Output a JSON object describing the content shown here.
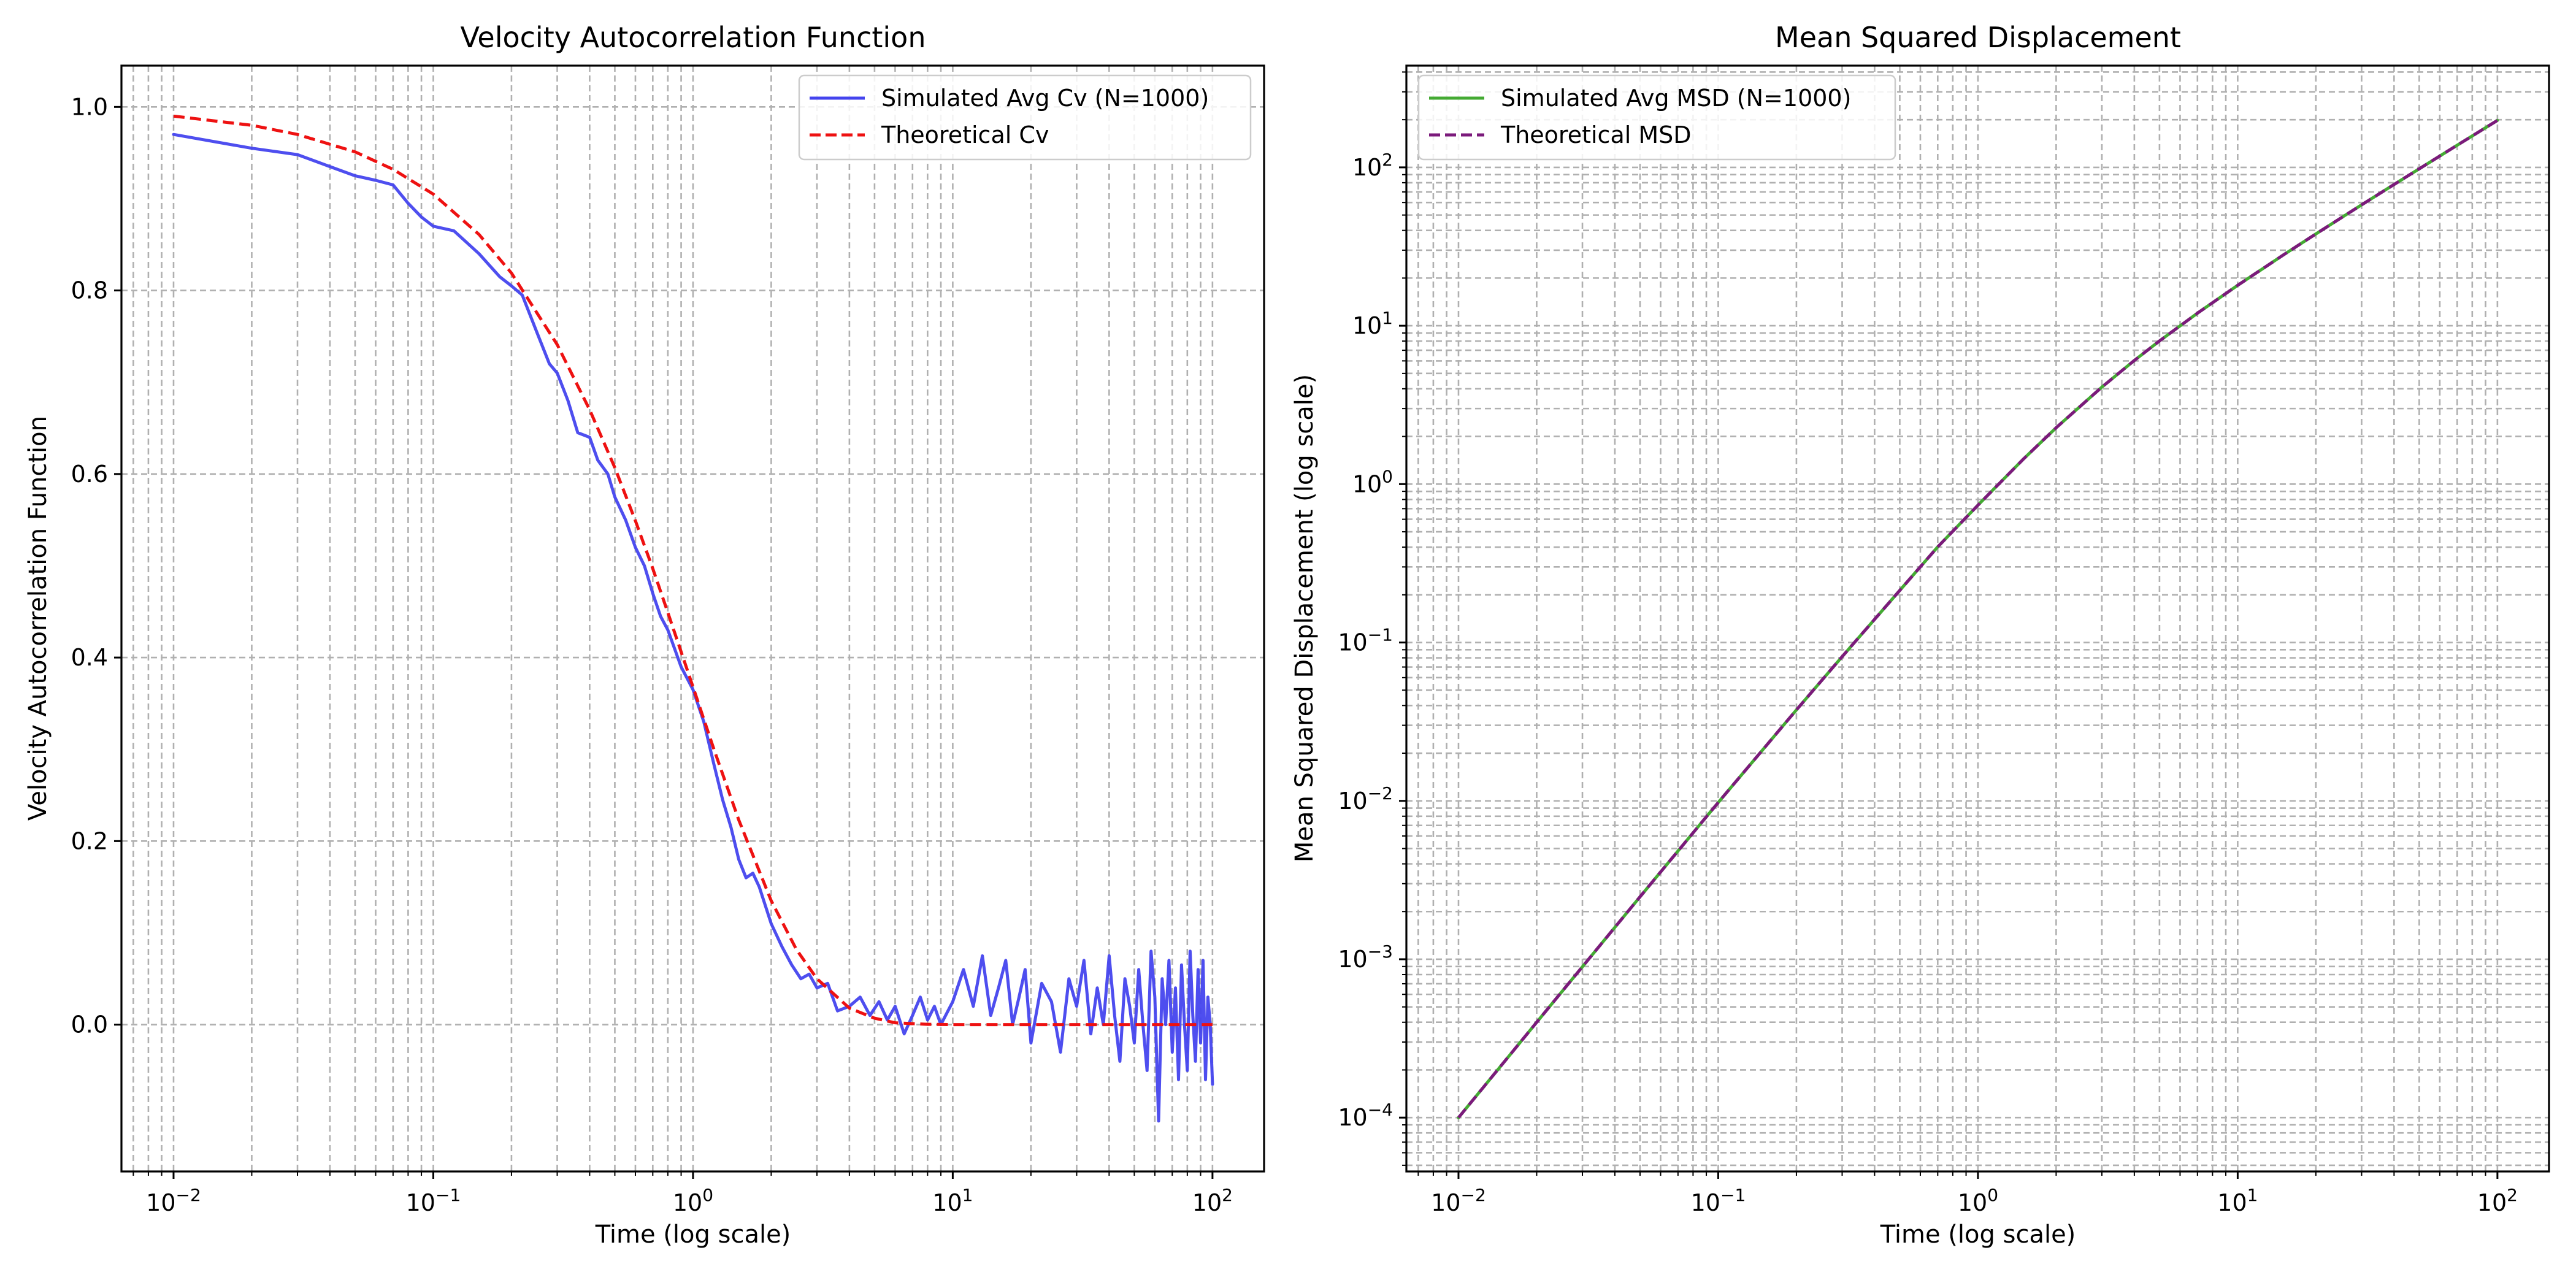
{
  "chart_data": [
    {
      "type": "line",
      "title": "Velocity Autocorrelation Function",
      "xlabel": "Time (log scale)",
      "ylabel": "Velocity Autocorrelation Function",
      "xscale": "log",
      "xlim": [
        0.0063,
        158
      ],
      "ylim": [
        -0.16,
        1.045
      ],
      "x_ticks": [
        0.01,
        0.1,
        1,
        10,
        100
      ],
      "x_tick_labels": [
        "10^-2",
        "10^-1",
        "10^0",
        "10^1",
        "10^2"
      ],
      "y_ticks": [
        0.0,
        0.2,
        0.4,
        0.6,
        0.8,
        1.0
      ],
      "y_tick_labels": [
        "0.0",
        "0.2",
        "0.4",
        "0.6",
        "0.8",
        "1.0"
      ],
      "grid": true,
      "legend_position": "top-right",
      "series": [
        {
          "name": "Simulated Avg Cv (N=1000)",
          "color": "#4444ee",
          "style": "solid",
          "x": [
            0.01,
            0.02,
            0.03,
            0.04,
            0.05,
            0.06,
            0.07,
            0.08,
            0.09,
            0.1,
            0.12,
            0.15,
            0.18,
            0.2,
            0.22,
            0.25,
            0.28,
            0.3,
            0.33,
            0.36,
            0.4,
            0.43,
            0.47,
            0.5,
            0.55,
            0.6,
            0.65,
            0.7,
            0.75,
            0.8,
            0.9,
            1.0,
            1.1,
            1.2,
            1.3,
            1.4,
            1.5,
            1.6,
            1.7,
            1.8,
            2.0,
            2.2,
            2.4,
            2.6,
            2.8,
            3.0,
            3.3,
            3.6,
            4.0,
            4.4,
            4.8,
            5.2,
            5.6,
            6.0,
            6.5,
            7.0,
            7.5,
            8.0,
            8.5,
            9.0,
            10.0,
            11.0,
            12.0,
            13.0,
            14.0,
            15.0,
            16.0,
            17.0,
            18.0,
            19.0,
            20.0,
            22.0,
            24.0,
            26.0,
            28.0,
            30.0,
            32.0,
            34.0,
            36.0,
            38.0,
            40.0,
            42.0,
            44.0,
            46.0,
            48.0,
            50.0,
            52.0,
            54.0,
            56.0,
            58.0,
            60.0,
            62.0,
            64.0,
            66.0,
            68.0,
            70.0,
            72.0,
            74.0,
            76.0,
            78.0,
            80.0,
            82.0,
            84.0,
            86.0,
            88.0,
            90.0,
            92.0,
            94.0,
            96.0,
            98.0,
            100.0
          ],
          "y": [
            0.97,
            0.955,
            0.948,
            0.935,
            0.925,
            0.92,
            0.915,
            0.895,
            0.88,
            0.87,
            0.865,
            0.84,
            0.815,
            0.805,
            0.795,
            0.755,
            0.72,
            0.71,
            0.68,
            0.645,
            0.64,
            0.615,
            0.6,
            0.575,
            0.55,
            0.52,
            0.5,
            0.47,
            0.445,
            0.43,
            0.39,
            0.365,
            0.33,
            0.285,
            0.245,
            0.215,
            0.18,
            0.16,
            0.165,
            0.15,
            0.11,
            0.085,
            0.065,
            0.05,
            0.055,
            0.04,
            0.045,
            0.015,
            0.02,
            0.03,
            0.01,
            0.025,
            0.005,
            0.02,
            -0.01,
            0.01,
            0.03,
            0.005,
            0.02,
            0.0,
            0.025,
            0.06,
            0.02,
            0.075,
            0.01,
            0.04,
            0.07,
            0.0,
            0.03,
            0.06,
            -0.02,
            0.045,
            0.025,
            -0.03,
            0.05,
            0.02,
            0.07,
            -0.01,
            0.04,
            0.0,
            0.075,
            0.01,
            -0.04,
            0.05,
            0.02,
            -0.02,
            0.06,
            0.0,
            -0.05,
            0.08,
            0.03,
            -0.105,
            0.05,
            0.0,
            0.07,
            -0.03,
            0.04,
            -0.06,
            0.065,
            0.0,
            -0.05,
            0.08,
            0.01,
            -0.04,
            0.06,
            -0.02,
            0.07,
            -0.06,
            0.03,
            0.0,
            -0.065
          ]
        },
        {
          "name": "Theoretical Cv",
          "color": "#ee1111",
          "style": "dashed",
          "x": [
            0.01,
            0.02,
            0.03,
            0.05,
            0.07,
            0.1,
            0.15,
            0.2,
            0.3,
            0.4,
            0.5,
            0.6,
            0.7,
            0.8,
            1.0,
            1.2,
            1.5,
            2.0,
            2.5,
            3.0,
            4.0,
            5.0,
            6.0,
            8.0,
            10.0,
            15.0,
            20.0,
            50.0,
            100.0
          ],
          "y": [
            0.99,
            0.98,
            0.97,
            0.951,
            0.932,
            0.905,
            0.861,
            0.819,
            0.741,
            0.67,
            0.607,
            0.549,
            0.497,
            0.449,
            0.368,
            0.301,
            0.223,
            0.135,
            0.082,
            0.05,
            0.018,
            0.007,
            0.002,
            0.0003,
            0.0,
            0.0,
            0.0,
            0.0,
            0.0
          ]
        }
      ]
    },
    {
      "type": "line",
      "title": "Mean Squared Displacement",
      "xlabel": "Time (log scale)",
      "ylabel": "Mean Squared Displacement (log scale)",
      "xscale": "log",
      "yscale": "log",
      "xlim": [
        0.0063,
        158
      ],
      "ylim": [
        4.57e-05,
        439
      ],
      "x_ticks": [
        0.01,
        0.1,
        1,
        10,
        100
      ],
      "x_tick_labels": [
        "10^-2",
        "10^-1",
        "10^0",
        "10^1",
        "10^2"
      ],
      "y_ticks": [
        0.0001,
        0.001,
        0.01,
        0.1,
        1,
        10,
        100
      ],
      "y_tick_labels": [
        "10^-4",
        "10^-3",
        "10^-2",
        "10^-1",
        "10^0",
        "10^1",
        "10^2"
      ],
      "grid": true,
      "legend_position": "top-left",
      "series": [
        {
          "name": "Simulated Avg MSD (N=1000)",
          "color": "#44aa33",
          "style": "solid",
          "x": [
            0.01,
            0.02,
            0.05,
            0.1,
            0.2,
            0.3,
            0.5,
            0.7,
            1.0,
            1.5,
            2.0,
            3.0,
            4.0,
            5.0,
            7.0,
            10.0,
            15.0,
            20.0,
            30.0,
            40.0,
            50.0,
            70.0,
            100.0
          ],
          "y": [
            0.0001,
            0.0004,
            0.00248,
            0.00976,
            0.0375,
            0.0814,
            0.2131,
            0.4014,
            0.7368,
            1.4462,
            2.2707,
            4.0996,
            6.0366,
            8.0135,
            12.0018,
            18.0,
            28.0,
            38.0,
            58.0,
            78.0,
            98.0,
            138.0,
            198.0
          ]
        },
        {
          "name": "Theoretical MSD",
          "color": "#7b1a7b",
          "style": "dashed",
          "x": [
            0.01,
            0.02,
            0.05,
            0.1,
            0.2,
            0.3,
            0.5,
            0.7,
            1.0,
            1.5,
            2.0,
            3.0,
            4.0,
            5.0,
            7.0,
            10.0,
            15.0,
            20.0,
            30.0,
            40.0,
            50.0,
            70.0,
            100.0
          ],
          "y": [
            0.0001,
            0.0004,
            0.00248,
            0.00976,
            0.0375,
            0.0814,
            0.2131,
            0.4014,
            0.7358,
            1.4462,
            2.2707,
            4.0996,
            6.0366,
            8.0135,
            12.0018,
            18.0,
            28.0,
            38.0,
            58.0,
            78.0,
            98.0,
            138.0,
            198.0
          ]
        }
      ]
    }
  ]
}
